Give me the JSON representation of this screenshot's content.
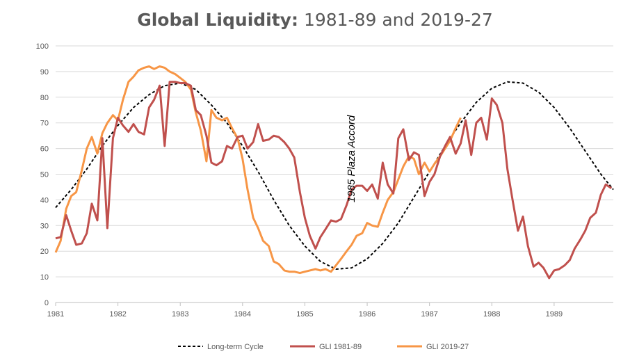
{
  "chart_data": {
    "type": "line",
    "title": "Global Liquidity:",
    "title_suffix": "1981-89 and 2019-27",
    "xlabel": "",
    "ylabel": "",
    "xlim": [
      1981,
      1989.95
    ],
    "ylim": [
      0,
      100
    ],
    "y_ticks": [
      0,
      10,
      20,
      30,
      40,
      50,
      60,
      70,
      80,
      90,
      100
    ],
    "x_ticks": [
      "1981",
      "1982",
      "1983",
      "1984",
      "1985",
      "1986",
      "1987",
      "1988",
      "1989"
    ],
    "grid": "horizontal",
    "legend_position": "bottom",
    "annotation": {
      "text": "1985 Plaza Accord",
      "x": 1985.8,
      "y": 39
    },
    "series": [
      {
        "name": "Long-term Cycle",
        "color": "#000000",
        "style": "dashed",
        "x": [
          1981,
          1981.25,
          1981.5,
          1981.75,
          1982,
          1982.25,
          1982.5,
          1982.75,
          1983,
          1983.25,
          1983.5,
          1983.75,
          1984,
          1984.25,
          1984.5,
          1984.75,
          1985,
          1985.25,
          1985.5,
          1985.75,
          1986,
          1986.25,
          1986.5,
          1986.75,
          1987,
          1987.25,
          1987.5,
          1987.75,
          1988,
          1988.25,
          1988.5,
          1988.75,
          1989,
          1989.25,
          1989.5,
          1989.75,
          1989.95
        ],
        "y": [
          37,
          44,
          52,
          61,
          69,
          76,
          81,
          84.5,
          85.5,
          83,
          77,
          70,
          61,
          51,
          40,
          30,
          22,
          16,
          13,
          13.5,
          17,
          23,
          31,
          41,
          51,
          61,
          70,
          78,
          83.5,
          86,
          85.5,
          82,
          76,
          68,
          59,
          50,
          44
        ]
      },
      {
        "name": "GLI 1981-89",
        "color": "#c0504d",
        "style": "solid",
        "x": [
          1981,
          1981.08,
          1981.17,
          1981.25,
          1981.33,
          1981.42,
          1981.5,
          1981.58,
          1981.67,
          1981.75,
          1981.83,
          1981.92,
          1982,
          1982.08,
          1982.17,
          1982.25,
          1982.33,
          1982.42,
          1982.5,
          1982.58,
          1982.67,
          1982.75,
          1982.83,
          1982.92,
          1983,
          1983.08,
          1983.17,
          1983.25,
          1983.33,
          1983.42,
          1983.5,
          1983.58,
          1983.67,
          1983.75,
          1983.83,
          1983.92,
          1984,
          1984.08,
          1984.17,
          1984.25,
          1984.33,
          1984.42,
          1984.5,
          1984.58,
          1984.67,
          1984.75,
          1984.83,
          1984.92,
          1985,
          1985.08,
          1985.17,
          1985.25,
          1985.33,
          1985.42,
          1985.5,
          1985.58,
          1985.67,
          1985.75,
          1985.83,
          1985.92,
          1986,
          1986.08,
          1986.17,
          1986.25,
          1986.33,
          1986.42,
          1986.5,
          1986.58,
          1986.67,
          1986.75,
          1986.83,
          1986.92,
          1987,
          1987.08,
          1987.17,
          1987.25,
          1987.33,
          1987.42,
          1987.5,
          1987.58,
          1987.67,
          1987.75,
          1987.83,
          1987.92,
          1988,
          1988.08,
          1988.17,
          1988.25,
          1988.33,
          1988.42,
          1988.5,
          1988.58,
          1988.67,
          1988.75,
          1988.83,
          1988.92,
          1989,
          1989.08,
          1989.17,
          1989.25,
          1989.33,
          1989.42,
          1989.5,
          1989.58,
          1989.67,
          1989.75,
          1989.83,
          1989.92
        ],
        "y": [
          25,
          25.5,
          34,
          28,
          22.5,
          23,
          27,
          38.5,
          32,
          64,
          29,
          64,
          72,
          69,
          66.5,
          69.5,
          66.5,
          65.5,
          76,
          79,
          84.5,
          61,
          86,
          86,
          85.5,
          85.5,
          84.5,
          75,
          73,
          65,
          54.5,
          53.5,
          55,
          61,
          60,
          64.5,
          65,
          60,
          62.5,
          69.5,
          63,
          63.5,
          65,
          64.5,
          62.5,
          60,
          56.5,
          43,
          33,
          26,
          21,
          25.5,
          28.5,
          32,
          31.5,
          32.5,
          38,
          44,
          45.5,
          45.5,
          43.5,
          46,
          40.5,
          54.5,
          46,
          42.5,
          64,
          67.5,
          55.5,
          58.5,
          57.5,
          41.5,
          47,
          50,
          57,
          61,
          64.5,
          58,
          62,
          71,
          57.5,
          70,
          72,
          63.5,
          79.5,
          77,
          70,
          52,
          40.5,
          28,
          33.5,
          22,
          14,
          15.5,
          13.5,
          9.5,
          12.5,
          13,
          14.5,
          16.5,
          21,
          24.5,
          28,
          33,
          35,
          42,
          46,
          44.5
        ]
      },
      {
        "name": "GLI 2019-27",
        "color": "#f79646",
        "style": "solid",
        "x": [
          1981,
          1981.08,
          1981.17,
          1981.25,
          1981.33,
          1981.42,
          1981.5,
          1981.58,
          1981.67,
          1981.75,
          1981.83,
          1981.92,
          1982,
          1982.08,
          1982.17,
          1982.25,
          1982.33,
          1982.42,
          1982.5,
          1982.58,
          1982.67,
          1982.75,
          1982.83,
          1982.92,
          1983,
          1983.08,
          1983.17,
          1983.25,
          1983.33,
          1983.42,
          1983.5,
          1983.58,
          1983.67,
          1983.75,
          1983.83,
          1983.92,
          1984,
          1984.08,
          1984.17,
          1984.25,
          1984.33,
          1984.42,
          1984.5,
          1984.58,
          1984.67,
          1984.75,
          1984.83,
          1984.92,
          1985,
          1985.08,
          1985.17,
          1985.25,
          1985.33,
          1985.42,
          1985.5,
          1985.58,
          1985.67,
          1985.75,
          1985.83,
          1985.92,
          1986,
          1986.08,
          1986.17,
          1986.25,
          1986.33,
          1986.42,
          1986.5,
          1986.58,
          1986.67,
          1986.75,
          1986.83,
          1986.92,
          1987,
          1987.08,
          1987.17,
          1987.25,
          1987.33,
          1987.42,
          1987.5
        ],
        "y": [
          19.5,
          24,
          36.5,
          41.5,
          43,
          51.5,
          60,
          64.5,
          58,
          66,
          70,
          73,
          71,
          79,
          86,
          88,
          90.5,
          91.5,
          92,
          91,
          92,
          91.5,
          90,
          89,
          87.5,
          86,
          83,
          74,
          67,
          55,
          75,
          72,
          71,
          72,
          68,
          64,
          56,
          44,
          33,
          29,
          24,
          22,
          16,
          15,
          12.5,
          12,
          12,
          11.5,
          12,
          12.5,
          13,
          12.5,
          13,
          12,
          14.5,
          17,
          20,
          22.5,
          26,
          27,
          31,
          30,
          29.5,
          35,
          40,
          43,
          48,
          53,
          57,
          56,
          50,
          54.5,
          51,
          54,
          57,
          60,
          63,
          68,
          72
        ]
      }
    ]
  }
}
